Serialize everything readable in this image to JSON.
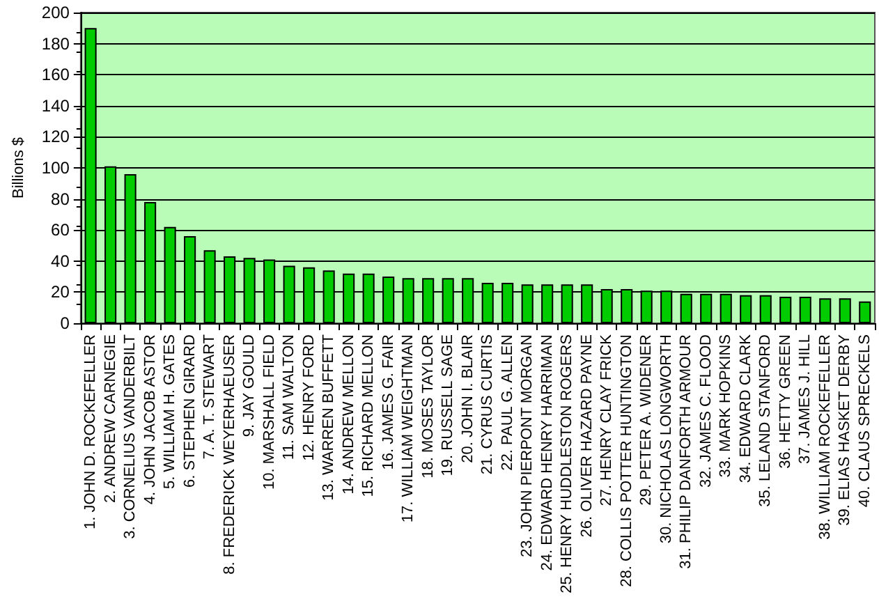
{
  "chart_data": {
    "type": "bar",
    "ylabel": "Billions $",
    "categories": [
      "1. JOHN D. ROCKEFELLER",
      "2. ANDREW CARNEGIE",
      "3. CORNELIUS VANDERBILT",
      "4. JOHN JACOB ASTOR",
      "5. WILLIAM H. GATES",
      "6. STEPHEN GIRARD",
      "7. A. T. STEWART",
      "8. FREDERICK WEYERHAEUSER",
      "9. JAY GOULD",
      "10. MARSHALL FIELD",
      "11. SAM WALTON",
      "12. HENRY FORD",
      "13. WARREN BUFFETT",
      "14. ANDREW MELLON",
      "15. RICHARD MELLON",
      "16. JAMES G. FAIR",
      "17. WILLIAM WEIGHTMAN",
      "18. MOSES TAYLOR",
      "19. RUSSELL SAGE",
      "20. JOHN I. BLAIR",
      "21. CYRUS CURTIS",
      "22. PAUL G. ALLEN",
      "23. JOHN PIERPONT MORGAN",
      "24. EDWARD HENRY HARRIMAN",
      "25. HENRY HUDDLESTON ROGERS",
      "26. OLIVER HAZARD PAYNE",
      "27. HENRY CLAY FRICK",
      "28. COLLIS POTTER HUNTINGTON",
      "29. PETER A. WIDENER",
      "30. NICHOLAS LONGWORTH",
      "31. PHILIP DANFORTH ARMOUR",
      "32. JAMES C. FLOOD",
      "33. MARK HOPKINS",
      "34. EDWARD CLARK",
      "35. LELAND STANFORD",
      "36. HETTY GREEN",
      "37. JAMES J. HILL",
      "38. WILLIAM ROCKEFELLER",
      "39. ELIAS HASKET DERBY",
      "40. CLAUS SPRECKELS"
    ],
    "values": [
      190,
      101,
      96,
      78,
      62,
      56,
      47,
      43,
      42,
      41,
      37,
      36,
      34,
      32,
      32,
      30,
      29,
      29,
      29,
      29,
      26,
      26,
      25,
      25,
      25,
      25,
      22,
      22,
      21,
      21,
      19,
      19,
      19,
      18,
      18,
      17,
      17,
      16,
      16,
      14
    ],
    "color": "#00cc00",
    "ylim": [
      0,
      200
    ],
    "yticks": [
      0,
      20,
      40,
      60,
      80,
      100,
      120,
      140,
      160,
      180,
      200
    ],
    "grid": "y"
  }
}
